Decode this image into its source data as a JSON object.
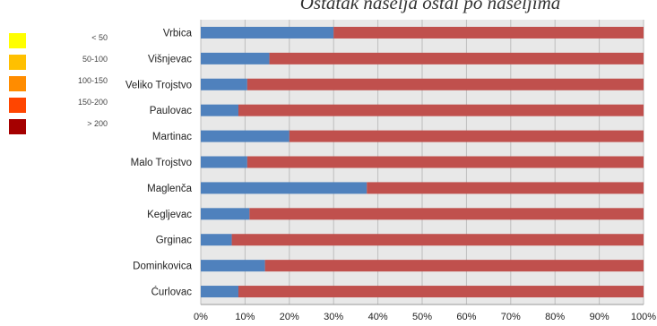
{
  "legend": {
    "items": [
      {
        "label": "< 50",
        "color": "#ffff00"
      },
      {
        "label": "50-100",
        "color": "#ffc000"
      },
      {
        "label": "100-150",
        "color": "#ff8c00"
      },
      {
        "label": "150-200",
        "color": "#ff4500"
      },
      {
        "label": "> 200",
        "color": "#a50000"
      }
    ]
  },
  "chart_data": {
    "type": "bar",
    "orientation": "horizontal",
    "stacked": true,
    "title": "Ostatak naselja ostal po naseljima",
    "categories": [
      "Vrbica",
      "Višnjevac",
      "Veliko Trojstvo",
      "Paulovac",
      "Martinac",
      "Malo Trojstvo",
      "Maglenča",
      "Kegljevac",
      "Grginac",
      "Dominkovica",
      "Ćurlovac"
    ],
    "series": [
      {
        "color": "#4f81bd",
        "values": [
          30,
          15.5,
          10.5,
          8.5,
          20,
          10.5,
          37.5,
          11,
          7,
          14.5,
          8.5
        ]
      },
      {
        "color": "#c0504d",
        "values": [
          70,
          84.5,
          89.5,
          91.5,
          80,
          89.5,
          62.5,
          89,
          93,
          85.5,
          91.5
        ]
      }
    ],
    "xlim": [
      0,
      100
    ],
    "xticks": [
      "0%",
      "10%",
      "20%",
      "30%",
      "40%",
      "50%",
      "60%",
      "70%",
      "80%",
      "90%",
      "100%"
    ],
    "grid": true,
    "legend": "left"
  }
}
